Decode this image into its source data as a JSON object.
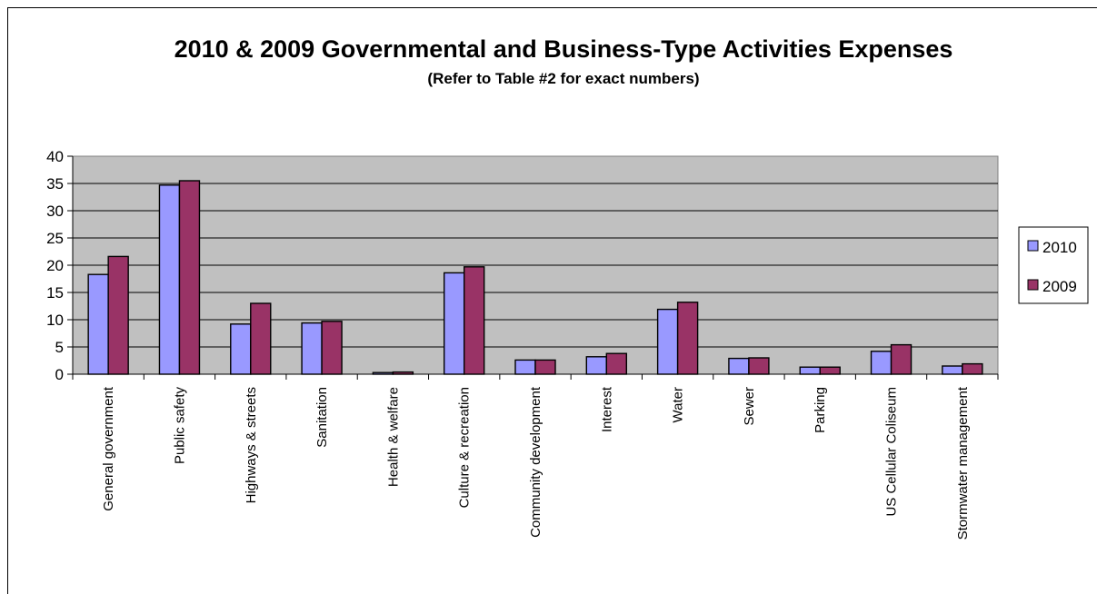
{
  "chart_data": {
    "type": "bar",
    "title": "2010 & 2009 Governmental and Business-Type Activities Expenses",
    "subtitle": "(Refer to Table #2 for exact numbers)",
    "xlabel": "",
    "ylabel": "",
    "ylim": [
      0,
      40
    ],
    "yticks": [
      "0",
      "5",
      "10",
      "15",
      "20",
      "25",
      "30",
      "35",
      "40"
    ],
    "grid": true,
    "legend_position": "right",
    "categories": [
      "General government",
      "Public safety",
      "Highways & streets",
      "Sanitation",
      "Health & welfare",
      "Culture & recreation",
      "Community development",
      "Interest",
      "Water",
      "Sewer",
      "Parking",
      "US Cellular Coliseum",
      "Stormwater management"
    ],
    "series": [
      {
        "name": "2010",
        "color": "#9999ff",
        "values": [
          18.3,
          34.7,
          9.2,
          9.4,
          0.3,
          18.6,
          2.6,
          3.2,
          11.9,
          2.9,
          1.3,
          4.2,
          1.5
        ]
      },
      {
        "name": "2009",
        "color": "#993366",
        "values": [
          21.6,
          35.5,
          13.0,
          9.7,
          0.4,
          19.7,
          2.6,
          3.8,
          13.2,
          3.0,
          1.3,
          5.4,
          1.9
        ]
      }
    ],
    "plot_background": "#c0c0c0"
  }
}
